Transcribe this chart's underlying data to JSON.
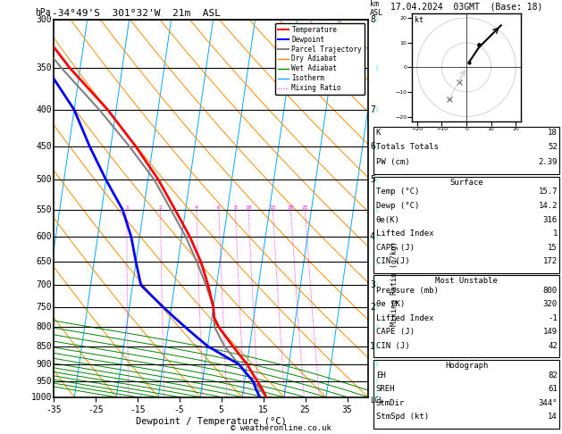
{
  "title_left": "-34°49'S  301°32'W  21m  ASL",
  "title_right": "17.04.2024  03GMT  (Base: 18)",
  "xlabel": "Dewpoint / Temperature (°C)",
  "pressure_levels": [
    300,
    350,
    400,
    450,
    500,
    550,
    600,
    650,
    700,
    750,
    800,
    850,
    900,
    950,
    1000
  ],
  "km_ticks": {
    "300": 8,
    "400": 7,
    "450": 6,
    "500": 5,
    "600": 4,
    "700": 3,
    "750": 2,
    "850": 1
  },
  "temp_profile_p": [
    1000,
    975,
    950,
    925,
    900,
    875,
    850,
    825,
    800,
    775,
    750,
    700,
    650,
    600,
    550,
    500,
    450,
    400,
    350,
    300
  ],
  "temp_profile_t": [
    15.7,
    14.5,
    13.0,
    11.5,
    10.0,
    8.0,
    6.0,
    4.0,
    2.0,
    0.5,
    0.0,
    -2.0,
    -4.5,
    -8.0,
    -12.5,
    -17.5,
    -24.0,
    -32.0,
    -42.5,
    -53.0
  ],
  "dewp_profile_p": [
    1000,
    975,
    950,
    925,
    900,
    875,
    850,
    825,
    800,
    775,
    750,
    700,
    650,
    600,
    550,
    500,
    450,
    400,
    350,
    300
  ],
  "dewp_profile_t": [
    14.2,
    13.0,
    12.0,
    10.0,
    8.0,
    4.0,
    0.0,
    -3.0,
    -6.0,
    -9.0,
    -12.0,
    -18.0,
    -20.0,
    -22.0,
    -25.0,
    -30.0,
    -35.0,
    -40.0,
    -48.0,
    -56.0
  ],
  "parcel_profile_p": [
    1000,
    975,
    950,
    925,
    900,
    875,
    850,
    825,
    800,
    775,
    750,
    700,
    650,
    600,
    550,
    500,
    450,
    400,
    350,
    300
  ],
  "parcel_profile_t": [
    15.7,
    14.0,
    12.0,
    10.0,
    8.0,
    6.0,
    4.0,
    2.5,
    1.0,
    0.5,
    0.0,
    -2.5,
    -5.5,
    -9.0,
    -13.5,
    -18.5,
    -25.5,
    -34.0,
    -44.5,
    -55.5
  ],
  "temp_color": "#ff0000",
  "dewp_color": "#0000ff",
  "parcel_color": "#808080",
  "dry_adiabat_color": "#ff8c00",
  "wet_adiabat_color": "#008800",
  "isotherm_color": "#00aaff",
  "mixing_ratio_color": "#ff00ff",
  "x_min": -35,
  "x_max": 40,
  "p_min": 300,
  "p_max": 1000,
  "mixing_ratio_values": [
    1,
    2,
    4,
    6,
    8,
    10,
    15,
    20,
    25
  ],
  "skew_factor": 25.0,
  "lcl_pressure": 992,
  "copyright": "© weatheronline.co.uk",
  "table1": [
    [
      "K",
      "18"
    ],
    [
      "Totals Totals",
      "52"
    ],
    [
      "PW (cm)",
      "2.39"
    ]
  ],
  "table2_title": "Surface",
  "table2": [
    [
      "Temp (°C)",
      "15.7"
    ],
    [
      "Dewp (°C)",
      "14.2"
    ],
    [
      "θe(K)",
      "316"
    ],
    [
      "Lifted Index",
      "1"
    ],
    [
      "CAPE (J)",
      "15"
    ],
    [
      "CIN (J)",
      "172"
    ]
  ],
  "table3_title": "Most Unstable",
  "table3": [
    [
      "Pressure (mb)",
      "800"
    ],
    [
      "θe (K)",
      "320"
    ],
    [
      "Lifted Index",
      "-1"
    ],
    [
      "CAPE (J)",
      "149"
    ],
    [
      "CIN (J)",
      "42"
    ]
  ],
  "table4_title": "Hodograph",
  "table4": [
    [
      "EH",
      "82"
    ],
    [
      "SREH",
      "61"
    ],
    [
      "StmDir",
      "344°"
    ],
    [
      "StmSpd (kt)",
      "14"
    ]
  ]
}
